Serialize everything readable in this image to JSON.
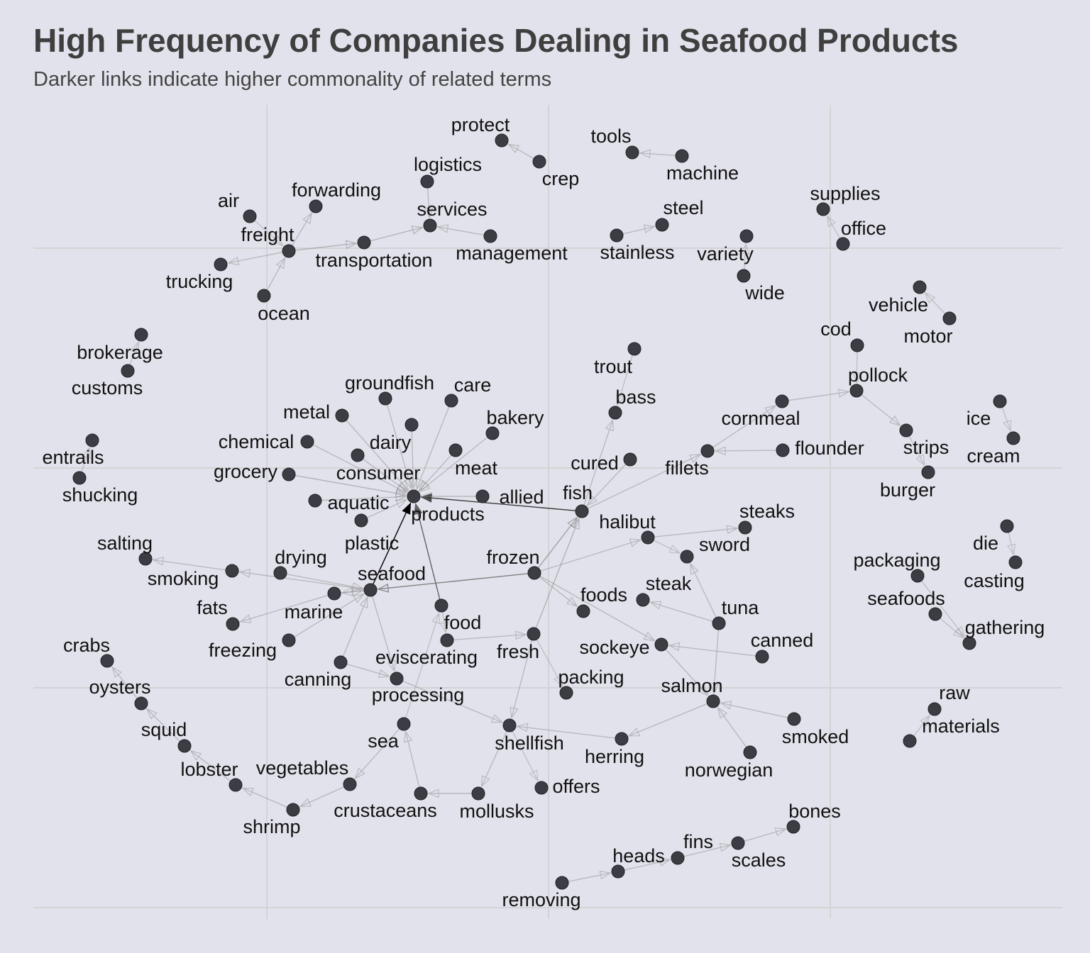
{
  "header": {
    "title": "High Frequency of Companies Dealing in Seafood Products",
    "subtitle": "Darker links indicate higher commonality of related terms"
  },
  "graph": {
    "nodes": [
      {
        "id": "products",
        "label": "products"
      },
      {
        "id": "seafood",
        "label": "seafood"
      },
      {
        "id": "fish",
        "label": "fish"
      },
      {
        "id": "frozen",
        "label": "frozen"
      },
      {
        "id": "food",
        "label": "food"
      },
      {
        "id": "fresh",
        "label": "fresh"
      },
      {
        "id": "shellfish",
        "label": "shellfish"
      },
      {
        "id": "salmon",
        "label": "salmon"
      },
      {
        "id": "processing",
        "label": "processing"
      },
      {
        "id": "protect",
        "label": "protect"
      },
      {
        "id": "crep",
        "label": "crep"
      },
      {
        "id": "tools",
        "label": "tools"
      },
      {
        "id": "machine",
        "label": "machine"
      },
      {
        "id": "logistics",
        "label": "logistics"
      },
      {
        "id": "services",
        "label": "services"
      },
      {
        "id": "management",
        "label": "management"
      },
      {
        "id": "transportation",
        "label": "transportation"
      },
      {
        "id": "air",
        "label": "air"
      },
      {
        "id": "forwarding",
        "label": "forwarding"
      },
      {
        "id": "freight",
        "label": "freight"
      },
      {
        "id": "trucking",
        "label": "trucking"
      },
      {
        "id": "ocean",
        "label": "ocean"
      },
      {
        "id": "steel",
        "label": "steel"
      },
      {
        "id": "stainless",
        "label": "stainless"
      },
      {
        "id": "variety",
        "label": "variety"
      },
      {
        "id": "wide",
        "label": "wide"
      },
      {
        "id": "supplies",
        "label": "supplies"
      },
      {
        "id": "office",
        "label": "office"
      },
      {
        "id": "vehicle",
        "label": "vehicle"
      },
      {
        "id": "motor",
        "label": "motor"
      },
      {
        "id": "brokerage",
        "label": "brokerage"
      },
      {
        "id": "customs",
        "label": "customs"
      },
      {
        "id": "cod",
        "label": "cod"
      },
      {
        "id": "pollock",
        "label": "pollock"
      },
      {
        "id": "trout",
        "label": "trout"
      },
      {
        "id": "bass",
        "label": "bass"
      },
      {
        "id": "groundfish",
        "label": "groundfish"
      },
      {
        "id": "care",
        "label": "care"
      },
      {
        "id": "metal",
        "label": "metal"
      },
      {
        "id": "dairy",
        "label": "dairy"
      },
      {
        "id": "bakery",
        "label": "bakery"
      },
      {
        "id": "chemical",
        "label": "chemical"
      },
      {
        "id": "meat",
        "label": "meat"
      },
      {
        "id": "consumer",
        "label": "consumer"
      },
      {
        "id": "grocery",
        "label": "grocery"
      },
      {
        "id": "aquatic",
        "label": "aquatic"
      },
      {
        "id": "plastic",
        "label": "plastic"
      },
      {
        "id": "allied",
        "label": "allied"
      },
      {
        "id": "cornmeal",
        "label": "cornmeal"
      },
      {
        "id": "flounder",
        "label": "flounder"
      },
      {
        "id": "fillets",
        "label": "fillets"
      },
      {
        "id": "cured",
        "label": "cured"
      },
      {
        "id": "strips",
        "label": "strips"
      },
      {
        "id": "burger",
        "label": "burger"
      },
      {
        "id": "ice",
        "label": "ice"
      },
      {
        "id": "cream",
        "label": "cream"
      },
      {
        "id": "entrails",
        "label": "entrails"
      },
      {
        "id": "shucking",
        "label": "shucking"
      },
      {
        "id": "halibut",
        "label": "halibut"
      },
      {
        "id": "steaks",
        "label": "steaks"
      },
      {
        "id": "sword",
        "label": "sword"
      },
      {
        "id": "salting",
        "label": "salting"
      },
      {
        "id": "smoking",
        "label": "smoking"
      },
      {
        "id": "drying",
        "label": "drying"
      },
      {
        "id": "fats",
        "label": "fats"
      },
      {
        "id": "marine",
        "label": "marine"
      },
      {
        "id": "freezing",
        "label": "freezing"
      },
      {
        "id": "steak",
        "label": "steak"
      },
      {
        "id": "tuna",
        "label": "tuna"
      },
      {
        "id": "foods",
        "label": "foods"
      },
      {
        "id": "die",
        "label": "die"
      },
      {
        "id": "casting",
        "label": "casting"
      },
      {
        "id": "packaging",
        "label": "packaging"
      },
      {
        "id": "seafoods",
        "label": "seafoods"
      },
      {
        "id": "gathering",
        "label": "gathering"
      },
      {
        "id": "eviscerating",
        "label": "eviscerating"
      },
      {
        "id": "sockeye",
        "label": "sockeye"
      },
      {
        "id": "canned",
        "label": "canned"
      },
      {
        "id": "crabs",
        "label": "crabs"
      },
      {
        "id": "canning",
        "label": "canning"
      },
      {
        "id": "packing",
        "label": "packing"
      },
      {
        "id": "oysters",
        "label": "oysters"
      },
      {
        "id": "raw",
        "label": "raw"
      },
      {
        "id": "materials",
        "label": "materials"
      },
      {
        "id": "squid",
        "label": "squid"
      },
      {
        "id": "sea",
        "label": "sea"
      },
      {
        "id": "herring",
        "label": "herring"
      },
      {
        "id": "smoked",
        "label": "smoked"
      },
      {
        "id": "norwegian",
        "label": "norwegian"
      },
      {
        "id": "lobster",
        "label": "lobster"
      },
      {
        "id": "vegetables",
        "label": "vegetables"
      },
      {
        "id": "offers",
        "label": "offers"
      },
      {
        "id": "crustaceans",
        "label": "crustaceans"
      },
      {
        "id": "mollusks",
        "label": "mollusks"
      },
      {
        "id": "shrimp",
        "label": "shrimp"
      },
      {
        "id": "bones",
        "label": "bones"
      },
      {
        "id": "fins",
        "label": "fins"
      },
      {
        "id": "heads",
        "label": "heads"
      },
      {
        "id": "scales",
        "label": "scales"
      },
      {
        "id": "removing",
        "label": "removing"
      }
    ],
    "edges": [
      {
        "from": "seafood",
        "to": "products",
        "weight": 1.0
      },
      {
        "from": "fish",
        "to": "products",
        "weight": 0.8
      },
      {
        "from": "food",
        "to": "products",
        "weight": 0.65
      },
      {
        "from": "frozen",
        "to": "seafood",
        "weight": 0.5
      },
      {
        "from": "frozen",
        "to": "fish",
        "weight": 0.35
      },
      {
        "from": "groundfish",
        "to": "products",
        "weight": 0.2
      },
      {
        "from": "care",
        "to": "products",
        "weight": 0.2
      },
      {
        "from": "metal",
        "to": "products",
        "weight": 0.2
      },
      {
        "from": "dairy",
        "to": "products",
        "weight": 0.2
      },
      {
        "from": "bakery",
        "to": "products",
        "weight": 0.2
      },
      {
        "from": "chemical",
        "to": "products",
        "weight": 0.2
      },
      {
        "from": "meat",
        "to": "products",
        "weight": 0.2
      },
      {
        "from": "consumer",
        "to": "products",
        "weight": 0.2
      },
      {
        "from": "grocery",
        "to": "products",
        "weight": 0.25
      },
      {
        "from": "aquatic",
        "to": "products",
        "weight": 0.2
      },
      {
        "from": "plastic",
        "to": "products",
        "weight": 0.2
      },
      {
        "from": "allied",
        "to": "products",
        "weight": 0.2
      },
      {
        "from": "crep",
        "to": "protect",
        "weight": 0.2
      },
      {
        "from": "machine",
        "to": "tools",
        "weight": 0.2
      },
      {
        "from": "logistics",
        "to": "services",
        "weight": 0.2
      },
      {
        "from": "management",
        "to": "services",
        "weight": 0.2
      },
      {
        "from": "transportation",
        "to": "services",
        "weight": 0.25
      },
      {
        "from": "freight",
        "to": "transportation",
        "weight": 0.25
      },
      {
        "from": "freight",
        "to": "forwarding",
        "weight": 0.2
      },
      {
        "from": "freight",
        "to": "trucking",
        "weight": 0.2
      },
      {
        "from": "ocean",
        "to": "freight",
        "weight": 0.2
      },
      {
        "from": "air",
        "to": "freight",
        "weight": 0.15
      },
      {
        "from": "stainless",
        "to": "steel",
        "weight": 0.2
      },
      {
        "from": "wide",
        "to": "variety",
        "weight": 0.15
      },
      {
        "from": "office",
        "to": "supplies",
        "weight": 0.15
      },
      {
        "from": "motor",
        "to": "vehicle",
        "weight": 0.15
      },
      {
        "from": "customs",
        "to": "brokerage",
        "weight": 0.15
      },
      {
        "from": "cod",
        "to": "pollock",
        "weight": 0.15
      },
      {
        "from": "cornmeal",
        "to": "pollock",
        "weight": 0.2
      },
      {
        "from": "pollock",
        "to": "strips",
        "weight": 0.2
      },
      {
        "from": "strips",
        "to": "burger",
        "weight": 0.15
      },
      {
        "from": "fillets",
        "to": "cornmeal",
        "weight": 0.2
      },
      {
        "from": "flounder",
        "to": "fillets",
        "weight": 0.2
      },
      {
        "from": "fish",
        "to": "fillets",
        "weight": 0.2
      },
      {
        "from": "fish",
        "to": "bass",
        "weight": 0.2
      },
      {
        "from": "trout",
        "to": "bass",
        "weight": 0.15
      },
      {
        "from": "cured",
        "to": "fish",
        "weight": 0.2
      },
      {
        "from": "ice",
        "to": "cream",
        "weight": 0.15
      },
      {
        "from": "shucking",
        "to": "entrails",
        "weight": 0.15
      },
      {
        "from": "halibut",
        "to": "steaks",
        "weight": 0.2
      },
      {
        "from": "halibut",
        "to": "sword",
        "weight": 0.15
      },
      {
        "from": "frozen",
        "to": "halibut",
        "weight": 0.2
      },
      {
        "from": "tuna",
        "to": "sword",
        "weight": 0.2
      },
      {
        "from": "tuna",
        "to": "steak",
        "weight": 0.2
      },
      {
        "from": "tuna",
        "to": "salmon",
        "weight": 0.2
      },
      {
        "from": "seafood",
        "to": "smoking",
        "weight": 0.2
      },
      {
        "from": "smoking",
        "to": "salting",
        "weight": 0.2
      },
      {
        "from": "drying",
        "to": "seafood",
        "weight": 0.2
      },
      {
        "from": "marine",
        "to": "fats",
        "weight": 0.2
      },
      {
        "from": "marine",
        "to": "seafood",
        "weight": 0.2
      },
      {
        "from": "freezing",
        "to": "seafood",
        "weight": 0.2
      },
      {
        "from": "canning",
        "to": "seafood",
        "weight": 0.2
      },
      {
        "from": "canning",
        "to": "processing",
        "weight": 0.2
      },
      {
        "from": "seafood",
        "to": "processing",
        "weight": 0.2
      },
      {
        "from": "frozen",
        "to": "foods",
        "weight": 0.2
      },
      {
        "from": "frozen",
        "to": "sockeye",
        "weight": 0.2
      },
      {
        "from": "frozen",
        "to": "marine",
        "weight": 0.2
      },
      {
        "from": "die",
        "to": "casting",
        "weight": 0.15
      },
      {
        "from": "packaging",
        "to": "gathering",
        "weight": 0.15
      },
      {
        "from": "seafoods",
        "to": "gathering",
        "weight": 0.15
      },
      {
        "from": "eviscerating",
        "to": "fresh",
        "weight": 0.2
      },
      {
        "from": "food",
        "to": "eviscerating",
        "weight": 0.15
      },
      {
        "from": "fresh",
        "to": "fish",
        "weight": 0.25
      },
      {
        "from": "fresh",
        "to": "shellfish",
        "weight": 0.2
      },
      {
        "from": "fresh",
        "to": "packing",
        "weight": 0.15
      },
      {
        "from": "canned",
        "to": "sockeye",
        "weight": 0.2
      },
      {
        "from": "sockeye",
        "to": "salmon",
        "weight": 0.2
      },
      {
        "from": "salmon",
        "to": "herring",
        "weight": 0.2
      },
      {
        "from": "herring",
        "to": "shellfish",
        "weight": 0.2
      },
      {
        "from": "smoked",
        "to": "salmon",
        "weight": 0.2
      },
      {
        "from": "norwegian",
        "to": "salmon",
        "weight": 0.2
      },
      {
        "from": "oysters",
        "to": "crabs",
        "weight": 0.2
      },
      {
        "from": "squid",
        "to": "oysters",
        "weight": 0.2
      },
      {
        "from": "lobster",
        "to": "squid",
        "weight": 0.2
      },
      {
        "from": "shrimp",
        "to": "lobster",
        "weight": 0.2
      },
      {
        "from": "vegetables",
        "to": "shrimp",
        "weight": 0.2
      },
      {
        "from": "sea",
        "to": "vegetables",
        "weight": 0.2
      },
      {
        "from": "crustaceans",
        "to": "sea",
        "weight": 0.2
      },
      {
        "from": "mollusks",
        "to": "crustaceans",
        "weight": 0.2
      },
      {
        "from": "shellfish",
        "to": "mollusks",
        "weight": 0.2
      },
      {
        "from": "shellfish",
        "to": "offers",
        "weight": 0.15
      },
      {
        "from": "processing",
        "to": "shellfish",
        "weight": 0.2
      },
      {
        "from": "sea",
        "to": "food",
        "weight": 0.15
      },
      {
        "from": "materials",
        "to": "raw",
        "weight": 0.15
      },
      {
        "from": "removing",
        "to": "heads",
        "weight": 0.2
      },
      {
        "from": "heads",
        "to": "fins",
        "weight": 0.2
      },
      {
        "from": "fins",
        "to": "scales",
        "weight": 0.2
      },
      {
        "from": "scales",
        "to": "bones",
        "weight": 0.2
      }
    ]
  }
}
